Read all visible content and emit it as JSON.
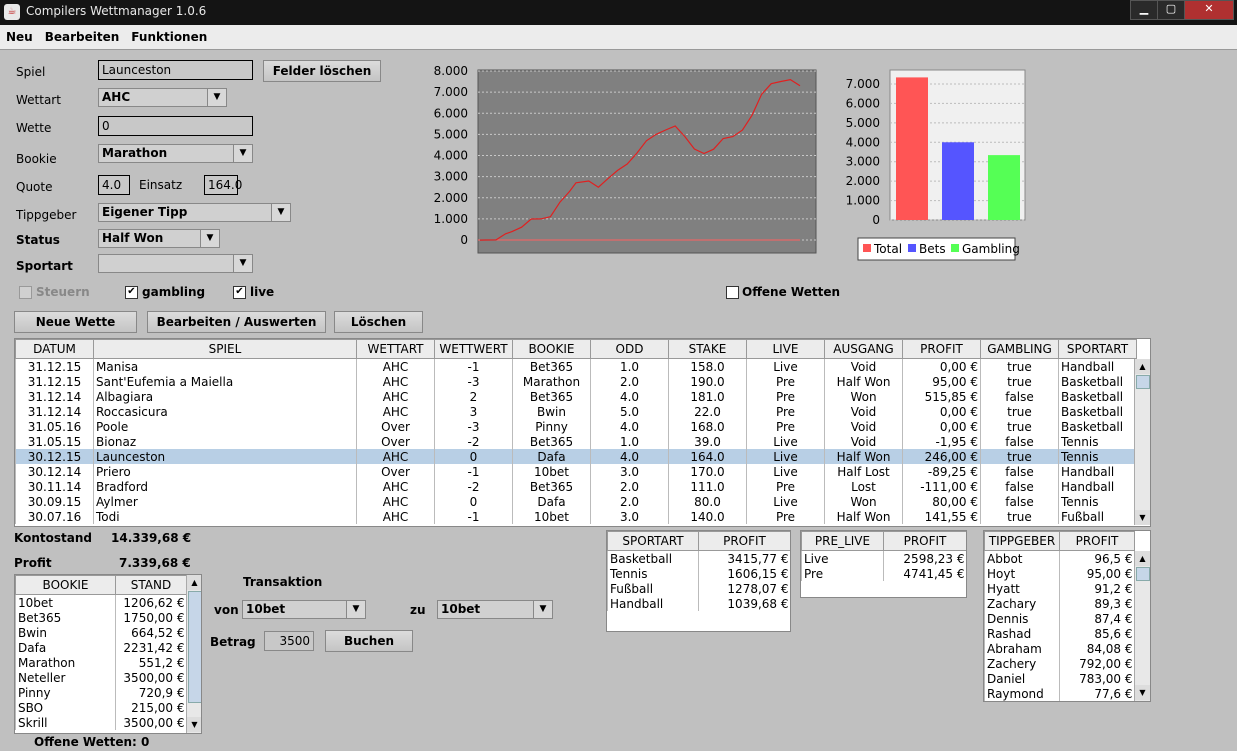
{
  "window": {
    "title": "Compilers Wettmanager 1.0.6"
  },
  "menu": [
    "Neu",
    "Bearbeiten",
    "Funktionen"
  ],
  "form": {
    "spiel_label": "Spiel",
    "spiel_value": "Launceston",
    "clear_button": "Felder löschen",
    "wettart_label": "Wettart",
    "wettart_value": "AHC",
    "wette_label": "Wette",
    "wette_value": "0",
    "bookie_label": "Bookie",
    "bookie_value": "Marathon",
    "quote_label": "Quote",
    "quote_value": "4.0",
    "einsatz_label": "Einsatz",
    "einsatz_value": "164.0",
    "tippgeber_label": "Tippgeber",
    "tippgeber_value": "Eigener Tipp",
    "status_label": "Status",
    "status_value": "Half Won",
    "sportart_label": "Sportart",
    "sportart_value": "",
    "steuern_label": "Steuern",
    "gambling_label": "gambling",
    "live_label": "live",
    "offene_label": "Offene Wetten"
  },
  "buttons": {
    "new": "Neue Wette",
    "edit": "Bearbeiten / Auswerten",
    "delete": "Löschen"
  },
  "line_chart": {
    "y_ticks": [
      "8.000",
      "7.000",
      "6.000",
      "5.000",
      "4.000",
      "3.000",
      "2.000",
      "1.000",
      "0"
    ],
    "accent": "#e02020"
  },
  "chart_data": {
    "type": "bar",
    "categories": [
      "Total",
      "Bets",
      "Gambling"
    ],
    "values": [
      7339.68,
      4000,
      3340
    ],
    "ylim": [
      0,
      7500
    ],
    "y_ticks": [
      "7.000",
      "6.000",
      "5.000",
      "4.000",
      "3.000",
      "2.000",
      "1.000",
      "0"
    ],
    "colors": [
      "#ff5555",
      "#5555ff",
      "#55ff55"
    ],
    "legend": [
      "Total",
      "Bets",
      "Gambling"
    ]
  },
  "main_table": {
    "headers": [
      "DATUM",
      "SPIEL",
      "WETTART",
      "WETTWERT",
      "BOOKIE",
      "ODD",
      "STAKE",
      "LIVE",
      "AUSGANG",
      "PROFIT",
      "GAMBLING",
      "SPORTART"
    ],
    "rows": [
      [
        "31.12.15",
        "Manisa",
        "AHC",
        "-1",
        "Bet365",
        "1.0",
        "158.0",
        "Live",
        "Void",
        "0,00 €",
        "true",
        "Handball"
      ],
      [
        "31.12.15",
        "Sant'Eufemia a Maiella",
        "AHC",
        "-3",
        "Marathon",
        "2.0",
        "190.0",
        "Pre",
        "Half Won",
        "95,00 €",
        "true",
        "Basketball"
      ],
      [
        "31.12.14",
        "Albagiara",
        "AHC",
        "2",
        "Bet365",
        "4.0",
        "181.0",
        "Pre",
        "Won",
        "515,85 €",
        "false",
        "Basketball"
      ],
      [
        "31.12.14",
        "Roccasicura",
        "AHC",
        "3",
        "Bwin",
        "5.0",
        "22.0",
        "Pre",
        "Void",
        "0,00 €",
        "true",
        "Basketball"
      ],
      [
        "31.05.16",
        "Poole",
        "Over",
        "-3",
        "Pinny",
        "4.0",
        "168.0",
        "Pre",
        "Void",
        "0,00 €",
        "true",
        "Basketball"
      ],
      [
        "31.05.15",
        "Bionaz",
        "Over",
        "-2",
        "Bet365",
        "1.0",
        "39.0",
        "Live",
        "Void",
        "-1,95 €",
        "false",
        "Tennis"
      ],
      [
        "30.12.15",
        "Launceston",
        "AHC",
        "0",
        "Dafa",
        "4.0",
        "164.0",
        "Live",
        "Half Won",
        "246,00 €",
        "true",
        "Tennis"
      ],
      [
        "30.12.14",
        "Priero",
        "Over",
        "-1",
        "10bet",
        "3.0",
        "170.0",
        "Live",
        "Half Lost",
        "-89,25 €",
        "false",
        "Handball"
      ],
      [
        "30.11.14",
        "Bradford",
        "AHC",
        "-2",
        "Bet365",
        "2.0",
        "111.0",
        "Pre",
        "Lost",
        "-111,00 €",
        "false",
        "Handball"
      ],
      [
        "30.09.15",
        "Aylmer",
        "AHC",
        "0",
        "Dafa",
        "2.0",
        "80.0",
        "Live",
        "Won",
        "80,00 €",
        "false",
        "Tennis"
      ],
      [
        "30.07.16",
        "Todi",
        "AHC",
        "-1",
        "10bet",
        "3.0",
        "140.0",
        "Pre",
        "Half Won",
        "141,55 €",
        "true",
        "Fußball"
      ]
    ]
  },
  "summary": {
    "konto_label": "Kontostand",
    "konto_value": "14.339,68 €",
    "profit_label": "Profit",
    "profit_value": "7.339,68 €"
  },
  "bookie_table": {
    "headers": [
      "BOOKIE",
      "STAND"
    ],
    "rows": [
      [
        "10bet",
        "1206,62 €"
      ],
      [
        "Bet365",
        "1750,00 €"
      ],
      [
        "Bwin",
        "664,52 €"
      ],
      [
        "Dafa",
        "2231,42 €"
      ],
      [
        "Marathon",
        "551,2 €"
      ],
      [
        "Neteller",
        "3500,00 €"
      ],
      [
        "Pinny",
        "720,9 €"
      ],
      [
        "SBO",
        "215,00 €"
      ],
      [
        "Skrill",
        "3500,00 €"
      ]
    ]
  },
  "transaction": {
    "title": "Transaktion",
    "von_label": "von",
    "von_value": "10bet",
    "zu_label": "zu",
    "zu_value": "10bet",
    "betrag_label": "Betrag",
    "betrag_value": "3500",
    "book_button": "Buchen"
  },
  "sportart_table": {
    "headers": [
      "SPORTART",
      "PROFIT"
    ],
    "rows": [
      [
        "Basketball",
        "3415,77 €"
      ],
      [
        "Tennis",
        "1606,15 €"
      ],
      [
        "Fußball",
        "1278,07 €"
      ],
      [
        "Handball",
        "1039,68 €"
      ]
    ]
  },
  "prelive_table": {
    "headers": [
      "PRE_LIVE",
      "PROFIT"
    ],
    "rows": [
      [
        "Live",
        "2598,23 €"
      ],
      [
        "Pre",
        "4741,45 €"
      ]
    ]
  },
  "tippgeber_table": {
    "headers": [
      "TIPPGEBER",
      "PROFIT"
    ],
    "rows": [
      [
        "Abbot",
        "96,5 €"
      ],
      [
        "Hoyt",
        "95,00 €"
      ],
      [
        "Hyatt",
        "91,2 €"
      ],
      [
        "Zachary",
        "89,3 €"
      ],
      [
        "Dennis",
        "87,4 €"
      ],
      [
        "Rashad",
        "85,6 €"
      ],
      [
        "Abraham",
        "84,08 €"
      ],
      [
        "Zachery",
        "792,00 €"
      ],
      [
        "Daniel",
        "783,00 €"
      ],
      [
        "Raymond",
        "77,6 €"
      ]
    ]
  },
  "footer": {
    "offene": "Offene Wetten: 0"
  }
}
